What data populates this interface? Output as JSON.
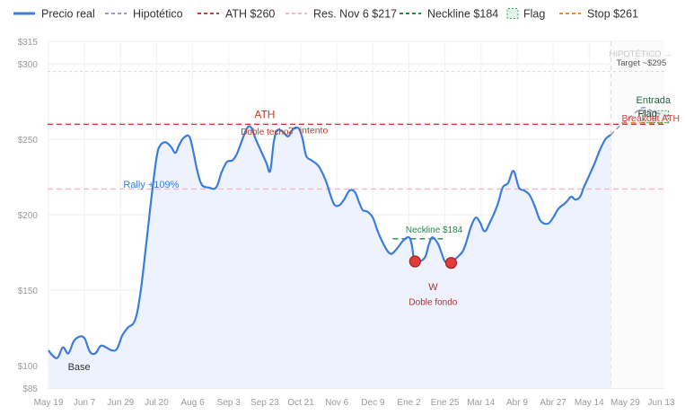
{
  "chart_data": {
    "type": "line",
    "title": "",
    "xlabel": "",
    "ylabel": "",
    "y_scale": "linear",
    "ylim": [
      85,
      315
    ],
    "yticks": [
      85,
      100,
      150,
      200,
      250,
      300,
      315
    ],
    "ytick_labels": [
      "$85",
      "$100",
      "$150",
      "$200",
      "$250",
      "$300",
      "$315"
    ],
    "xtick_labels": [
      "May 19",
      "Jun 7",
      "Jun 29",
      "Jul 20",
      "Aug 6",
      "Sep 3",
      "Sep 23",
      "Oct 21",
      "Nov 6",
      "Dec 9",
      "Ene 2",
      "Ene 25",
      "Mar 14",
      "Abr 9",
      "Abr 27",
      "May 14",
      "May 29",
      "Jun 13"
    ],
    "grid": true,
    "legend": {
      "position": "top",
      "entries": [
        {
          "label": "Precio real",
          "style": "solid",
          "color": "#3b7ddd"
        },
        {
          "label": "Hipotético",
          "style": "dashed",
          "color": "#9a9ab8"
        },
        {
          "label": "ATH $260",
          "style": "dashed",
          "color": "#d63a3a"
        },
        {
          "label": "Res. Nov 6 $217",
          "style": "dashed",
          "color": "#f2b8c8"
        },
        {
          "label": "Neckline $184",
          "style": "dashed",
          "color": "#1f8a4c"
        },
        {
          "label": "Flag",
          "style": "box",
          "color": "#2e9e5e"
        },
        {
          "label": "Stop $261",
          "style": "dashed",
          "color": "#f08c28"
        }
      ]
    },
    "reference_lines": [
      {
        "name": "ATH $260",
        "y": 260,
        "color": "#d63a3a"
      },
      {
        "name": "Res. Nov 6 $217",
        "y": 217,
        "color": "#f2b8c8"
      },
      {
        "name": "Neckline $184",
        "y": 184,
        "color": "#1f8a4c",
        "x_range": [
          9.55,
          10.95
        ]
      },
      {
        "name": "Stop $261",
        "y": 261,
        "color": "#f08c28",
        "x_range": [
          15.9,
          17.2
        ]
      },
      {
        "name": "Target",
        "y": 295,
        "color": "#d8d8d8"
      }
    ],
    "series": [
      {
        "name": "Precio real",
        "color": "#3b7ddd",
        "points": [
          [
            0.0,
            110
          ],
          [
            0.1,
            107
          ],
          [
            0.25,
            105
          ],
          [
            0.4,
            112
          ],
          [
            0.55,
            108
          ],
          [
            0.7,
            116
          ],
          [
            0.85,
            119
          ],
          [
            1.0,
            118
          ],
          [
            1.15,
            109
          ],
          [
            1.3,
            108
          ],
          [
            1.45,
            113
          ],
          [
            1.6,
            112
          ],
          [
            1.75,
            110
          ],
          [
            1.9,
            111
          ],
          [
            2.05,
            120
          ],
          [
            2.2,
            125
          ],
          [
            2.4,
            130
          ],
          [
            2.55,
            148
          ],
          [
            2.7,
            178
          ],
          [
            2.85,
            210
          ],
          [
            3.0,
            238
          ],
          [
            3.1,
            246
          ],
          [
            3.25,
            248
          ],
          [
            3.4,
            245
          ],
          [
            3.52,
            241
          ],
          [
            3.62,
            246
          ],
          [
            3.75,
            251
          ],
          [
            3.9,
            252
          ],
          [
            4.0,
            244
          ],
          [
            4.12,
            230
          ],
          [
            4.25,
            220
          ],
          [
            4.45,
            218
          ],
          [
            4.65,
            218
          ],
          [
            4.8,
            228
          ],
          [
            4.95,
            235
          ],
          [
            5.1,
            236
          ],
          [
            5.22,
            240
          ],
          [
            5.35,
            248
          ],
          [
            5.5,
            257
          ],
          [
            5.62,
            258
          ],
          [
            5.75,
            250
          ],
          [
            5.9,
            242
          ],
          [
            6.05,
            234
          ],
          [
            6.15,
            229
          ],
          [
            6.25,
            248
          ],
          [
            6.35,
            256
          ],
          [
            6.5,
            255
          ],
          [
            6.65,
            252
          ],
          [
            6.8,
            257
          ],
          [
            6.95,
            257
          ],
          [
            7.05,
            250
          ],
          [
            7.15,
            239
          ],
          [
            7.3,
            236
          ],
          [
            7.5,
            232
          ],
          [
            7.7,
            222
          ],
          [
            7.9,
            208
          ],
          [
            8.05,
            206
          ],
          [
            8.2,
            210
          ],
          [
            8.35,
            216
          ],
          [
            8.5,
            215
          ],
          [
            8.62,
            208
          ],
          [
            8.72,
            203
          ],
          [
            8.85,
            202
          ],
          [
            9.0,
            198
          ],
          [
            9.15,
            188
          ],
          [
            9.35,
            178
          ],
          [
            9.5,
            174
          ],
          [
            9.65,
            177
          ],
          [
            9.85,
            183
          ],
          [
            10.0,
            185
          ],
          [
            10.08,
            180
          ],
          [
            10.15,
            170
          ],
          [
            10.3,
            169
          ],
          [
            10.45,
            172
          ],
          [
            10.55,
            180
          ],
          [
            10.65,
            185
          ],
          [
            10.8,
            181
          ],
          [
            10.9,
            175
          ],
          [
            11.0,
            169
          ],
          [
            11.15,
            168
          ],
          [
            11.35,
            172
          ],
          [
            11.5,
            176
          ],
          [
            11.62,
            184
          ],
          [
            11.72,
            192
          ],
          [
            11.85,
            198
          ],
          [
            11.97,
            195
          ],
          [
            12.1,
            189
          ],
          [
            12.25,
            195
          ],
          [
            12.45,
            206
          ],
          [
            12.6,
            218
          ],
          [
            12.75,
            221
          ],
          [
            12.9,
            229
          ],
          [
            13.05,
            218
          ],
          [
            13.2,
            216
          ],
          [
            13.35,
            213
          ],
          [
            13.5,
            205
          ],
          [
            13.65,
            196
          ],
          [
            13.85,
            194
          ],
          [
            14.0,
            198
          ],
          [
            14.15,
            204
          ],
          [
            14.35,
            208
          ],
          [
            14.5,
            212
          ],
          [
            14.62,
            210
          ],
          [
            14.75,
            212
          ],
          [
            14.85,
            218
          ],
          [
            15.0,
            226
          ],
          [
            15.15,
            234
          ],
          [
            15.3,
            243
          ],
          [
            15.45,
            250
          ],
          [
            15.6,
            253
          ]
        ]
      },
      {
        "name": "Hipotético",
        "color": "#9a9ab8",
        "points": [
          [
            15.6,
            253
          ],
          [
            15.9,
            260
          ],
          [
            16.2,
            266
          ],
          [
            16.5,
            271
          ],
          [
            16.8,
            268
          ],
          [
            17.1,
            266
          ],
          [
            17.2,
            265
          ]
        ]
      }
    ],
    "markers": [
      {
        "label": "W",
        "x": 10.17,
        "y": 169,
        "color": "#d63a3a"
      },
      {
        "label": "W",
        "x": 11.17,
        "y": 168,
        "color": "#d63a3a"
      }
    ],
    "annotations": [
      {
        "text": "ATH",
        "x": 6.0,
        "y": 264,
        "color": "#c0392b"
      },
      {
        "text": "Doble techo",
        "x": 6.0,
        "y": 253,
        "color": "#c0392b"
      },
      {
        "text": "2° intento",
        "x": 7.2,
        "y": 254,
        "color": "#c0392b"
      },
      {
        "text": "Rally +109%",
        "x": 2.85,
        "y": 218,
        "color": "#3b7ddd"
      },
      {
        "text": "Neckline $184",
        "x": 10.7,
        "y": 188,
        "color": "#1f8a4c"
      },
      {
        "text": "W",
        "x": 10.67,
        "y": 150,
        "color": "#a83232"
      },
      {
        "text": "Doble fondo",
        "x": 10.67,
        "y": 140,
        "color": "#a83232"
      },
      {
        "text": "Base",
        "x": 0.85,
        "y": 97,
        "color": "#333333"
      },
      {
        "text": "HIPOTÉTICO →",
        "x": 16.4,
        "y": 305,
        "color": "#c8c8c8"
      },
      {
        "text": "Target ~$295",
        "x": 16.7,
        "y": 299,
        "color": "#555555"
      },
      {
        "text": "Entrada",
        "x": 16.8,
        "y": 274,
        "color": "#1f6b43"
      },
      {
        "text": "Flag",
        "x": 16.85,
        "y": 265,
        "color": "#333333"
      },
      {
        "text": "Breakout ATH",
        "x": 16.8,
        "y": 262,
        "color": "#d63a3a"
      }
    ],
    "flag_box": {
      "x_range": [
        16.5,
        17.2
      ],
      "y_range": [
        261,
        269
      ]
    },
    "hypothetical_region_start_x": 15.6
  }
}
